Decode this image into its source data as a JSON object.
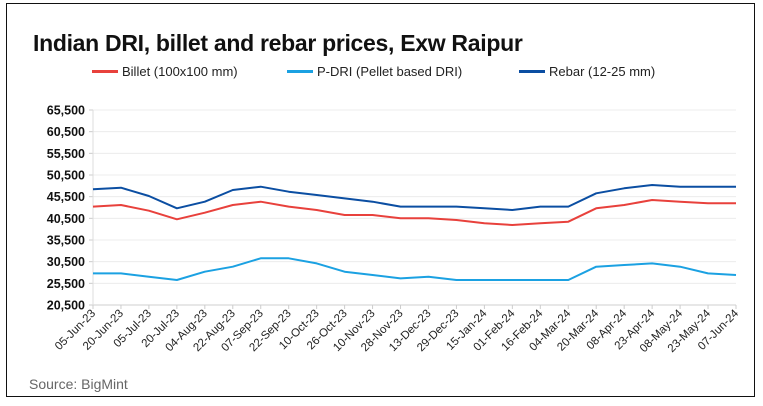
{
  "chart_data": {
    "type": "line",
    "title": "Indian DRI, billet and rebar prices, Exw Raipur",
    "xlabel": "",
    "ylabel": "",
    "ylim": [
      20500,
      65500
    ],
    "yticks": [
      "20,500",
      "25,500",
      "30,500",
      "35,500",
      "40,500",
      "45,500",
      "50,500",
      "55,500",
      "60,500",
      "65,500"
    ],
    "ytick_values": [
      20500,
      25500,
      30500,
      35500,
      40500,
      45500,
      50500,
      55500,
      60500,
      65500
    ],
    "grid": "horizontal",
    "legend_position": "top",
    "categories": [
      "05-Jun-23",
      "20-Jun-23",
      "05-Jul-23",
      "20-Jul-23",
      "04-Aug-23",
      "22-Aug-23",
      "07-Sep-23",
      "22-Sep-23",
      "10-Oct-23",
      "26-Oct-23",
      "10-Nov-23",
      "28-Nov-23",
      "13-Dec-23",
      "29-Dec-23",
      "15-Jan-24",
      "01-Feb-24",
      "16-Feb-24",
      "04-Mar-24",
      "20-Mar-24",
      "08-Apr-24",
      "23-Apr-24",
      "08-May-24",
      "23-May-24",
      "07-Jun-24"
    ],
    "series": [
      {
        "name": "Billet (100x100 mm)",
        "color": "#e8413c",
        "values": [
          43200,
          43570,
          42270,
          40270,
          41800,
          43570,
          44340,
          43200,
          42420,
          41270,
          41270,
          40500,
          40500,
          40110,
          39350,
          38960,
          39350,
          39730,
          42810,
          43570,
          44730,
          44340,
          43960,
          43960
        ]
      },
      {
        "name": "P-DRI (Pellet based DRI)",
        "color": "#1ba1e2",
        "values": [
          27800,
          27800,
          27030,
          26260,
          28190,
          29340,
          31270,
          31270,
          30110,
          28190,
          27420,
          26650,
          27030,
          26260,
          26260,
          26260,
          26260,
          26260,
          29340,
          29730,
          30110,
          29340,
          27800,
          27420
        ]
      },
      {
        "name": "Rebar (12-25 mm)",
        "color": "#0b4ea2",
        "values": [
          47200,
          47570,
          45650,
          42810,
          44340,
          47040,
          47800,
          46650,
          45880,
          45110,
          44340,
          43200,
          43200,
          43200,
          42810,
          42420,
          43200,
          43200,
          46270,
          47420,
          48190,
          47810,
          47810,
          47810
        ]
      }
    ],
    "source": "Source: BigMint"
  }
}
